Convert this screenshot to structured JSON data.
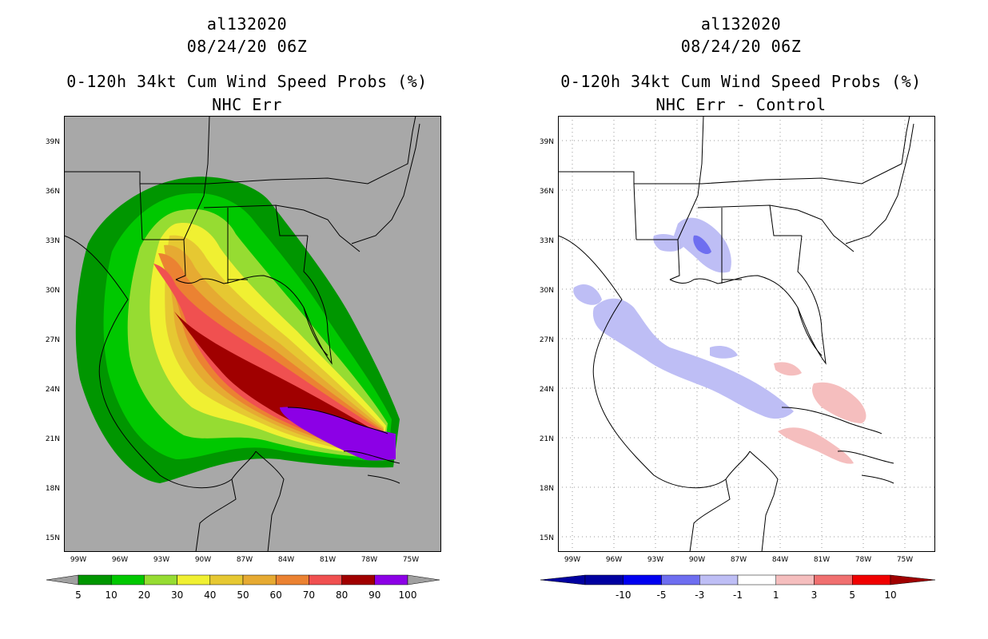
{
  "left": {
    "storm_id": "al132020",
    "datetime": "08/24/20 06Z",
    "product": "0-120h 34kt Cum Wind Speed Probs (%)",
    "subtitle": "NHC Err",
    "legend": {
      "labels": [
        "5",
        "10",
        "20",
        "30",
        "40",
        "50",
        "60",
        "70",
        "80",
        "90",
        "100"
      ],
      "colors": [
        "#009600",
        "#00c800",
        "#96dc32",
        "#f0f032",
        "#e6c832",
        "#e6aa32",
        "#eb8232",
        "#f05050",
        "#a00000",
        "#8c00e6"
      ],
      "end_color": "#a0a0a0"
    },
    "background_color": "#a8a8a8"
  },
  "right": {
    "storm_id": "al132020",
    "datetime": "08/24/20 06Z",
    "product": "0-120h 34kt Cum Wind Speed Probs (%)",
    "subtitle": "NHC Err - Control",
    "legend": {
      "labels": [
        "-10",
        "-5",
        "-3",
        "-1",
        "1",
        "3",
        "5",
        "10"
      ],
      "colors": [
        "#0000a0",
        "#0000f0",
        "#6e6ef0",
        "#bebef5",
        "#ffffff",
        "#f5bebe",
        "#f07070",
        "#f00000"
      ],
      "left_end_color": "#0000a0",
      "right_end_color": "#a00000"
    },
    "background_color": "#ffffff"
  },
  "lat_labels": [
    "39N",
    "36N",
    "33N",
    "30N",
    "27N",
    "24N",
    "21N",
    "18N",
    "15N"
  ],
  "lon_labels": [
    "99W",
    "96W",
    "93W",
    "90W",
    "87W",
    "84W",
    "81W",
    "78W",
    "75W"
  ]
}
